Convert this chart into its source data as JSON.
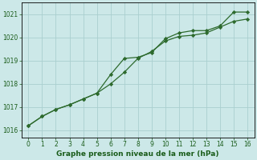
{
  "line1_x": [
    0,
    1,
    2,
    3,
    4,
    5,
    6,
    7,
    8,
    9,
    10,
    11,
    12,
    13,
    14,
    15,
    16
  ],
  "line1_y": [
    1016.2,
    1016.6,
    1016.9,
    1017.1,
    1017.35,
    1017.6,
    1018.0,
    1018.5,
    1019.1,
    1019.4,
    1019.85,
    1020.05,
    1020.1,
    1020.2,
    1020.45,
    1020.7,
    1020.8
  ],
  "line2_x": [
    0,
    1,
    2,
    3,
    4,
    5,
    6,
    7,
    8,
    9,
    10,
    11,
    12,
    13,
    14,
    15,
    16
  ],
  "line2_y": [
    1016.2,
    1016.6,
    1016.9,
    1017.1,
    1017.35,
    1017.6,
    1018.4,
    1019.1,
    1019.15,
    1019.35,
    1019.95,
    1020.2,
    1020.3,
    1020.3,
    1020.5,
    1021.1,
    1021.1
  ],
  "line_color": "#2d6a2d",
  "bg_color": "#cce8e8",
  "grid_color": "#aacfcf",
  "text_color": "#1a5c1a",
  "border_color": "#000000",
  "xlabel": "Graphe pression niveau de la mer (hPa)",
  "xlim": [
    -0.5,
    16.5
  ],
  "ylim": [
    1015.7,
    1021.5
  ],
  "yticks": [
    1016,
    1017,
    1018,
    1019,
    1020,
    1021
  ],
  "xticks": [
    0,
    1,
    2,
    3,
    4,
    5,
    6,
    7,
    8,
    9,
    10,
    11,
    12,
    13,
    14,
    15,
    16
  ],
  "tick_fontsize": 5.5,
  "xlabel_fontsize": 6.5
}
